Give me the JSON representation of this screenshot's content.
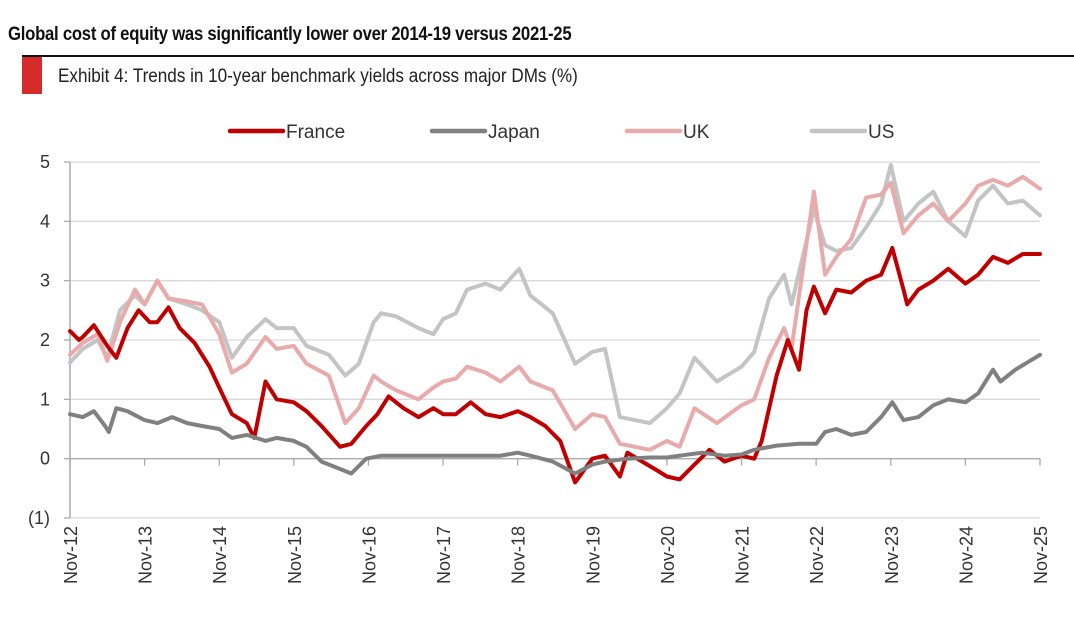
{
  "header": {
    "headline": "Global cost of equity was significantly lower over 2014-19 versus 2021-25",
    "exhibit_title": "Exhibit 4: Trends in 10-year benchmark yields across major DMs (%)",
    "accent_color": "#d52b2b"
  },
  "chart_data": {
    "type": "line",
    "title": "Exhibit 4: Trends in 10-year benchmark yields across major DMs (%)",
    "xlabel": "",
    "ylabel": "",
    "x_unit": "decimal year",
    "xlim": [
      2012.83,
      2025.83
    ],
    "ylim": [
      -1,
      5
    ],
    "y_ticks": [
      5,
      4,
      3,
      2,
      1,
      0,
      -1
    ],
    "y_tick_labels": [
      "5",
      "4",
      "3",
      "2",
      "1",
      "0",
      "(1)"
    ],
    "x_ticks": [
      2012.83,
      2013.83,
      2014.83,
      2015.83,
      2016.83,
      2017.83,
      2018.83,
      2019.83,
      2020.83,
      2021.83,
      2022.83,
      2023.83,
      2024.83,
      2025.83
    ],
    "x_tick_labels": [
      "Nov-12",
      "Nov-13",
      "Nov-14",
      "Nov-15",
      "Nov-16",
      "Nov-17",
      "Nov-18",
      "Nov-19",
      "Nov-20",
      "Nov-21",
      "Nov-22",
      "Nov-23",
      "Nov-24",
      "Nov-25"
    ],
    "grid": "horizontal",
    "legend_position": "top-center",
    "series": [
      {
        "name": "US",
        "color": "#c4c4c4",
        "points": [
          [
            2012.83,
            1.62
          ],
          [
            2013.0,
            1.85
          ],
          [
            2013.2,
            2.0
          ],
          [
            2013.33,
            1.7
          ],
          [
            2013.5,
            2.5
          ],
          [
            2013.7,
            2.75
          ],
          [
            2013.83,
            2.6
          ],
          [
            2014.0,
            3.0
          ],
          [
            2014.15,
            2.7
          ],
          [
            2014.4,
            2.6
          ],
          [
            2014.6,
            2.5
          ],
          [
            2014.83,
            2.3
          ],
          [
            2015.0,
            1.7
          ],
          [
            2015.2,
            2.05
          ],
          [
            2015.45,
            2.35
          ],
          [
            2015.6,
            2.2
          ],
          [
            2015.83,
            2.2
          ],
          [
            2016.0,
            1.9
          ],
          [
            2016.3,
            1.75
          ],
          [
            2016.52,
            1.4
          ],
          [
            2016.7,
            1.6
          ],
          [
            2016.9,
            2.3
          ],
          [
            2017.0,
            2.45
          ],
          [
            2017.2,
            2.4
          ],
          [
            2017.5,
            2.2
          ],
          [
            2017.7,
            2.1
          ],
          [
            2017.83,
            2.35
          ],
          [
            2018.0,
            2.45
          ],
          [
            2018.15,
            2.85
          ],
          [
            2018.4,
            2.95
          ],
          [
            2018.6,
            2.85
          ],
          [
            2018.85,
            3.2
          ],
          [
            2019.0,
            2.75
          ],
          [
            2019.3,
            2.45
          ],
          [
            2019.6,
            1.6
          ],
          [
            2019.83,
            1.8
          ],
          [
            2020.0,
            1.85
          ],
          [
            2020.2,
            0.7
          ],
          [
            2020.4,
            0.65
          ],
          [
            2020.6,
            0.6
          ],
          [
            2020.83,
            0.85
          ],
          [
            2021.0,
            1.1
          ],
          [
            2021.2,
            1.7
          ],
          [
            2021.5,
            1.3
          ],
          [
            2021.83,
            1.55
          ],
          [
            2022.0,
            1.8
          ],
          [
            2022.2,
            2.7
          ],
          [
            2022.4,
            3.1
          ],
          [
            2022.5,
            2.6
          ],
          [
            2022.8,
            4.2
          ],
          [
            2022.95,
            3.6
          ],
          [
            2023.1,
            3.5
          ],
          [
            2023.3,
            3.55
          ],
          [
            2023.5,
            3.9
          ],
          [
            2023.7,
            4.3
          ],
          [
            2023.83,
            4.95
          ],
          [
            2024.0,
            4.0
          ],
          [
            2024.2,
            4.3
          ],
          [
            2024.4,
            4.5
          ],
          [
            2024.6,
            4.0
          ],
          [
            2024.83,
            3.75
          ],
          [
            2025.0,
            4.35
          ],
          [
            2025.2,
            4.6
          ],
          [
            2025.4,
            4.3
          ],
          [
            2025.6,
            4.35
          ],
          [
            2025.83,
            4.1
          ]
        ]
      },
      {
        "name": "UK",
        "color": "#e8aaaa",
        "points": [
          [
            2012.83,
            1.75
          ],
          [
            2013.0,
            1.95
          ],
          [
            2013.2,
            2.1
          ],
          [
            2013.33,
            1.65
          ],
          [
            2013.5,
            2.3
          ],
          [
            2013.7,
            2.85
          ],
          [
            2013.83,
            2.6
          ],
          [
            2014.0,
            3.0
          ],
          [
            2014.15,
            2.7
          ],
          [
            2014.4,
            2.65
          ],
          [
            2014.6,
            2.6
          ],
          [
            2014.83,
            2.1
          ],
          [
            2015.0,
            1.45
          ],
          [
            2015.2,
            1.6
          ],
          [
            2015.45,
            2.05
          ],
          [
            2015.6,
            1.85
          ],
          [
            2015.83,
            1.9
          ],
          [
            2016.0,
            1.6
          ],
          [
            2016.3,
            1.4
          ],
          [
            2016.52,
            0.6
          ],
          [
            2016.7,
            0.85
          ],
          [
            2016.9,
            1.4
          ],
          [
            2017.0,
            1.3
          ],
          [
            2017.2,
            1.15
          ],
          [
            2017.5,
            1.0
          ],
          [
            2017.7,
            1.2
          ],
          [
            2017.83,
            1.3
          ],
          [
            2018.0,
            1.35
          ],
          [
            2018.15,
            1.55
          ],
          [
            2018.4,
            1.45
          ],
          [
            2018.6,
            1.3
          ],
          [
            2018.85,
            1.55
          ],
          [
            2019.0,
            1.3
          ],
          [
            2019.3,
            1.15
          ],
          [
            2019.6,
            0.5
          ],
          [
            2019.83,
            0.75
          ],
          [
            2020.0,
            0.7
          ],
          [
            2020.2,
            0.25
          ],
          [
            2020.4,
            0.2
          ],
          [
            2020.6,
            0.15
          ],
          [
            2020.83,
            0.3
          ],
          [
            2021.0,
            0.2
          ],
          [
            2021.2,
            0.85
          ],
          [
            2021.5,
            0.6
          ],
          [
            2021.83,
            0.9
          ],
          [
            2022.0,
            1.0
          ],
          [
            2022.2,
            1.7
          ],
          [
            2022.4,
            2.2
          ],
          [
            2022.5,
            1.85
          ],
          [
            2022.8,
            4.5
          ],
          [
            2022.95,
            3.1
          ],
          [
            2023.1,
            3.4
          ],
          [
            2023.3,
            3.7
          ],
          [
            2023.5,
            4.4
          ],
          [
            2023.7,
            4.45
          ],
          [
            2023.83,
            4.65
          ],
          [
            2024.0,
            3.8
          ],
          [
            2024.2,
            4.1
          ],
          [
            2024.4,
            4.3
          ],
          [
            2024.6,
            4.0
          ],
          [
            2024.83,
            4.3
          ],
          [
            2025.0,
            4.6
          ],
          [
            2025.2,
            4.7
          ],
          [
            2025.4,
            4.6
          ],
          [
            2025.6,
            4.75
          ],
          [
            2025.83,
            4.55
          ]
        ]
      },
      {
        "name": "France",
        "color": "#c00000",
        "points": [
          [
            2012.83,
            2.15
          ],
          [
            2012.95,
            2.0
          ],
          [
            2013.0,
            2.05
          ],
          [
            2013.15,
            2.25
          ],
          [
            2013.33,
            1.9
          ],
          [
            2013.45,
            1.7
          ],
          [
            2013.6,
            2.2
          ],
          [
            2013.75,
            2.5
          ],
          [
            2013.9,
            2.3
          ],
          [
            2014.0,
            2.3
          ],
          [
            2014.15,
            2.55
          ],
          [
            2014.3,
            2.2
          ],
          [
            2014.5,
            1.95
          ],
          [
            2014.7,
            1.55
          ],
          [
            2014.83,
            1.2
          ],
          [
            2015.0,
            0.75
          ],
          [
            2015.2,
            0.6
          ],
          [
            2015.3,
            0.35
          ],
          [
            2015.45,
            1.3
          ],
          [
            2015.6,
            1.0
          ],
          [
            2015.83,
            0.95
          ],
          [
            2016.0,
            0.8
          ],
          [
            2016.2,
            0.55
          ],
          [
            2016.45,
            0.2
          ],
          [
            2016.6,
            0.25
          ],
          [
            2016.8,
            0.55
          ],
          [
            2016.95,
            0.75
          ],
          [
            2017.1,
            1.05
          ],
          [
            2017.3,
            0.85
          ],
          [
            2017.5,
            0.7
          ],
          [
            2017.7,
            0.85
          ],
          [
            2017.83,
            0.75
          ],
          [
            2018.0,
            0.75
          ],
          [
            2018.2,
            0.95
          ],
          [
            2018.4,
            0.75
          ],
          [
            2018.6,
            0.7
          ],
          [
            2018.83,
            0.8
          ],
          [
            2019.0,
            0.7
          ],
          [
            2019.2,
            0.55
          ],
          [
            2019.4,
            0.3
          ],
          [
            2019.6,
            -0.4
          ],
          [
            2019.83,
            0.0
          ],
          [
            2020.0,
            0.05
          ],
          [
            2020.2,
            -0.3
          ],
          [
            2020.3,
            0.1
          ],
          [
            2020.5,
            -0.05
          ],
          [
            2020.7,
            -0.2
          ],
          [
            2020.83,
            -0.3
          ],
          [
            2021.0,
            -0.35
          ],
          [
            2021.2,
            -0.1
          ],
          [
            2021.4,
            0.15
          ],
          [
            2021.6,
            -0.05
          ],
          [
            2021.83,
            0.05
          ],
          [
            2022.0,
            0.0
          ],
          [
            2022.1,
            0.3
          ],
          [
            2022.3,
            1.4
          ],
          [
            2022.45,
            2.0
          ],
          [
            2022.6,
            1.5
          ],
          [
            2022.7,
            2.5
          ],
          [
            2022.8,
            2.9
          ],
          [
            2022.95,
            2.45
          ],
          [
            2023.1,
            2.85
          ],
          [
            2023.3,
            2.8
          ],
          [
            2023.5,
            3.0
          ],
          [
            2023.7,
            3.1
          ],
          [
            2023.85,
            3.55
          ],
          [
            2024.0,
            2.85
          ],
          [
            2024.05,
            2.6
          ],
          [
            2024.2,
            2.85
          ],
          [
            2024.4,
            3.0
          ],
          [
            2024.6,
            3.2
          ],
          [
            2024.83,
            2.95
          ],
          [
            2025.0,
            3.1
          ],
          [
            2025.2,
            3.4
          ],
          [
            2025.4,
            3.3
          ],
          [
            2025.6,
            3.45
          ],
          [
            2025.83,
            3.45
          ]
        ]
      },
      {
        "name": "Japan",
        "color": "#808080",
        "points": [
          [
            2012.83,
            0.75
          ],
          [
            2013.0,
            0.7
          ],
          [
            2013.15,
            0.8
          ],
          [
            2013.3,
            0.55
          ],
          [
            2013.35,
            0.45
          ],
          [
            2013.45,
            0.85
          ],
          [
            2013.6,
            0.8
          ],
          [
            2013.83,
            0.65
          ],
          [
            2014.0,
            0.6
          ],
          [
            2014.2,
            0.7
          ],
          [
            2014.4,
            0.6
          ],
          [
            2014.6,
            0.55
          ],
          [
            2014.83,
            0.5
          ],
          [
            2015.0,
            0.35
          ],
          [
            2015.2,
            0.4
          ],
          [
            2015.45,
            0.3
          ],
          [
            2015.6,
            0.35
          ],
          [
            2015.83,
            0.3
          ],
          [
            2016.0,
            0.2
          ],
          [
            2016.2,
            -0.05
          ],
          [
            2016.5,
            -0.2
          ],
          [
            2016.6,
            -0.25
          ],
          [
            2016.8,
            0.0
          ],
          [
            2017.0,
            0.05
          ],
          [
            2017.3,
            0.05
          ],
          [
            2017.6,
            0.05
          ],
          [
            2017.83,
            0.05
          ],
          [
            2018.0,
            0.05
          ],
          [
            2018.3,
            0.05
          ],
          [
            2018.6,
            0.05
          ],
          [
            2018.83,
            0.1
          ],
          [
            2019.0,
            0.05
          ],
          [
            2019.3,
            -0.05
          ],
          [
            2019.6,
            -0.25
          ],
          [
            2019.83,
            -0.1
          ],
          [
            2020.0,
            -0.05
          ],
          [
            2020.3,
            0.0
          ],
          [
            2020.6,
            0.02
          ],
          [
            2020.83,
            0.02
          ],
          [
            2021.0,
            0.05
          ],
          [
            2021.3,
            0.1
          ],
          [
            2021.6,
            0.05
          ],
          [
            2021.83,
            0.07
          ],
          [
            2022.0,
            0.15
          ],
          [
            2022.3,
            0.22
          ],
          [
            2022.6,
            0.25
          ],
          [
            2022.83,
            0.25
          ],
          [
            2022.95,
            0.45
          ],
          [
            2023.1,
            0.5
          ],
          [
            2023.3,
            0.4
          ],
          [
            2023.5,
            0.45
          ],
          [
            2023.7,
            0.7
          ],
          [
            2023.85,
            0.95
          ],
          [
            2024.0,
            0.65
          ],
          [
            2024.2,
            0.7
          ],
          [
            2024.4,
            0.9
          ],
          [
            2024.6,
            1.0
          ],
          [
            2024.83,
            0.95
          ],
          [
            2025.0,
            1.1
          ],
          [
            2025.2,
            1.5
          ],
          [
            2025.3,
            1.3
          ],
          [
            2025.5,
            1.5
          ],
          [
            2025.83,
            1.75
          ]
        ]
      }
    ],
    "legend_order": [
      "France",
      "Japan",
      "UK",
      "US"
    ]
  }
}
